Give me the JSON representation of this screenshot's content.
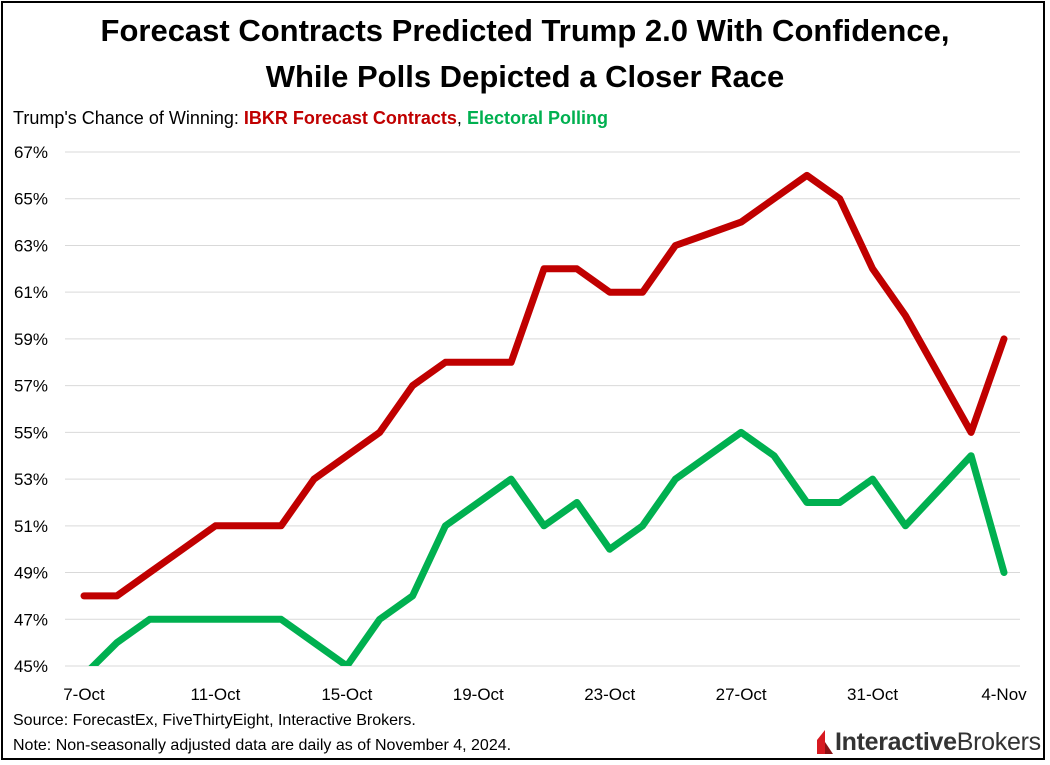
{
  "title_line1": "Forecast Contracts Predicted Trump 2.0 With Confidence,",
  "title_line2": "While Polls Depicted a Closer Race",
  "subtitle": {
    "prefix": "Trump's Chance of Winning: ",
    "series1": "IBKR Forecast Contracts",
    "separator": ", ",
    "series2": "Electoral Polling"
  },
  "footer": {
    "source": "Source: ForecastEx, FiveThirtyEight, Interactive Brokers.",
    "note": "Note: Non-seasonally adjusted data are daily as of November 4, 2024."
  },
  "logo": {
    "bold": "Interactive",
    "light": "Brokers"
  },
  "colors": {
    "forecast": "#c00000",
    "polling": "#00b050",
    "grid": "#d9d9d9",
    "brand": "#d71920"
  },
  "chart_data": {
    "type": "line",
    "title": "Forecast Contracts Predicted Trump 2.0 With Confidence, While Polls Depicted a Closer Race",
    "ylabel": "Trump's Chance of Winning",
    "xlabel": "",
    "ylim": [
      45,
      67
    ],
    "yticks": [
      45,
      47,
      49,
      51,
      53,
      55,
      57,
      59,
      61,
      63,
      65,
      67
    ],
    "ytick_labels": [
      "45%",
      "47%",
      "49%",
      "51%",
      "53%",
      "55%",
      "57%",
      "59%",
      "61%",
      "63%",
      "65%",
      "67%"
    ],
    "grid": true,
    "x": [
      "7-Oct",
      "8-Oct",
      "9-Oct",
      "10-Oct",
      "11-Oct",
      "12-Oct",
      "13-Oct",
      "14-Oct",
      "15-Oct",
      "16-Oct",
      "17-Oct",
      "18-Oct",
      "19-Oct",
      "20-Oct",
      "21-Oct",
      "22-Oct",
      "23-Oct",
      "24-Oct",
      "25-Oct",
      "26-Oct",
      "27-Oct",
      "28-Oct",
      "29-Oct",
      "30-Oct",
      "31-Oct",
      "1-Nov",
      "2-Nov",
      "3-Nov",
      "4-Nov"
    ],
    "xtick_labels": [
      "7-Oct",
      "11-Oct",
      "15-Oct",
      "19-Oct",
      "23-Oct",
      "27-Oct",
      "31-Oct",
      "4-Nov"
    ],
    "xtick_indices": [
      0,
      4,
      8,
      12,
      16,
      20,
      24,
      28
    ],
    "series": [
      {
        "name": "IBKR Forecast Contracts",
        "values": [
          48,
          48,
          49,
          50,
          51,
          51,
          51,
          53,
          54,
          55,
          57,
          58,
          58,
          58,
          62,
          62,
          61,
          61,
          63,
          63.5,
          64,
          65,
          66,
          65,
          62,
          60,
          57.5,
          55,
          59
        ]
      },
      {
        "name": "Electoral Polling",
        "values": [
          44.6,
          46,
          47,
          47,
          47,
          47,
          47,
          46,
          45,
          47,
          48,
          51,
          52,
          53,
          51,
          52,
          50,
          51,
          53,
          54,
          55,
          54,
          52,
          52,
          53,
          51,
          52.5,
          54,
          49
        ]
      }
    ]
  }
}
